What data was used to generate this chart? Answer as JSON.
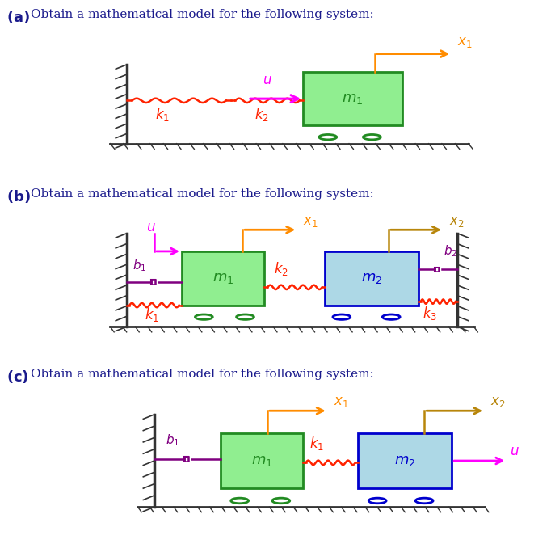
{
  "bg_color": "#ffffff",
  "text_color": "#1a1a8c",
  "label_a": "(a)",
  "label_b": "(b)",
  "label_c": "(c)",
  "subtitle": "Obtain a mathematical model for the following system:",
  "colors": {
    "orange": "#ff8c00",
    "dark_yellow": "#b8860b",
    "red": "#ff2200",
    "magenta": "#ff00ff",
    "green_box": "#90ee90",
    "green_border": "#228B22",
    "blue_box": "#add8e6",
    "blue_border": "#0000cd",
    "purple": "#800080",
    "wall": "#333333",
    "wheel_green": "#228B22",
    "wheel_blue": "#0000cd"
  }
}
